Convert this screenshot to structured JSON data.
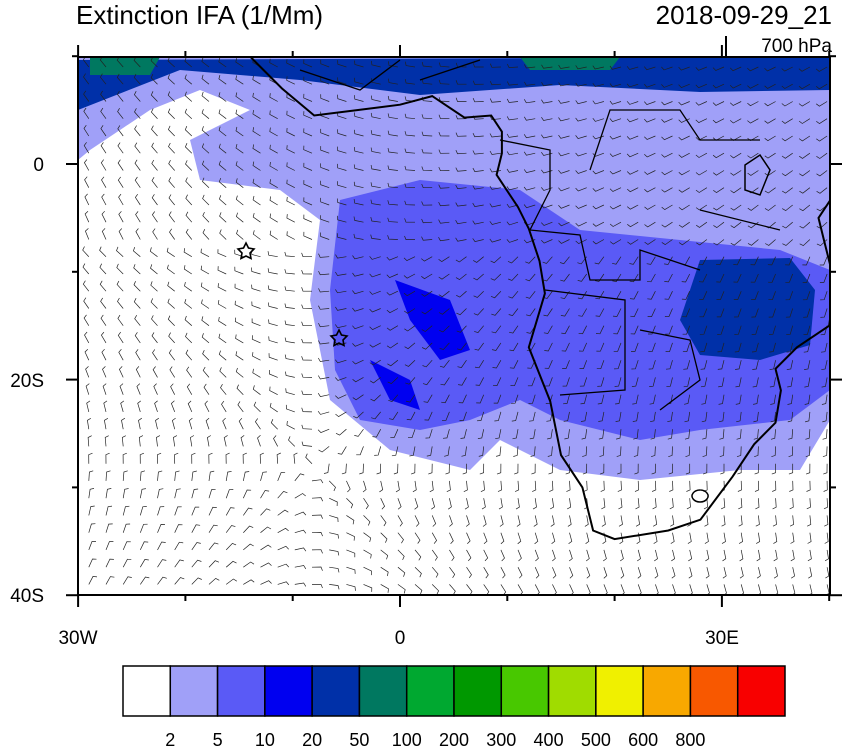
{
  "title": "Extinction IFA (1/Mm)",
  "timestamp": "2018-09-29_21",
  "level": "700 hPa",
  "x_axis": {
    "labels": [
      "30W",
      "0",
      "30E"
    ]
  },
  "y_axis": {
    "labels": [
      "0",
      "20S",
      "40S"
    ]
  },
  "colorbar": {
    "colors": [
      "#ffffff",
      "#a0a0f8",
      "#5a5af6",
      "#0000f0",
      "#0030a8",
      "#007860",
      "#00a830",
      "#009800",
      "#48c800",
      "#a0dc00",
      "#f0f000",
      "#f8a800",
      "#f85800",
      "#f80000"
    ],
    "labels": [
      "2",
      "5",
      "10",
      "20",
      "50",
      "100",
      "200",
      "300",
      "400",
      "500",
      "600",
      "800"
    ]
  }
}
